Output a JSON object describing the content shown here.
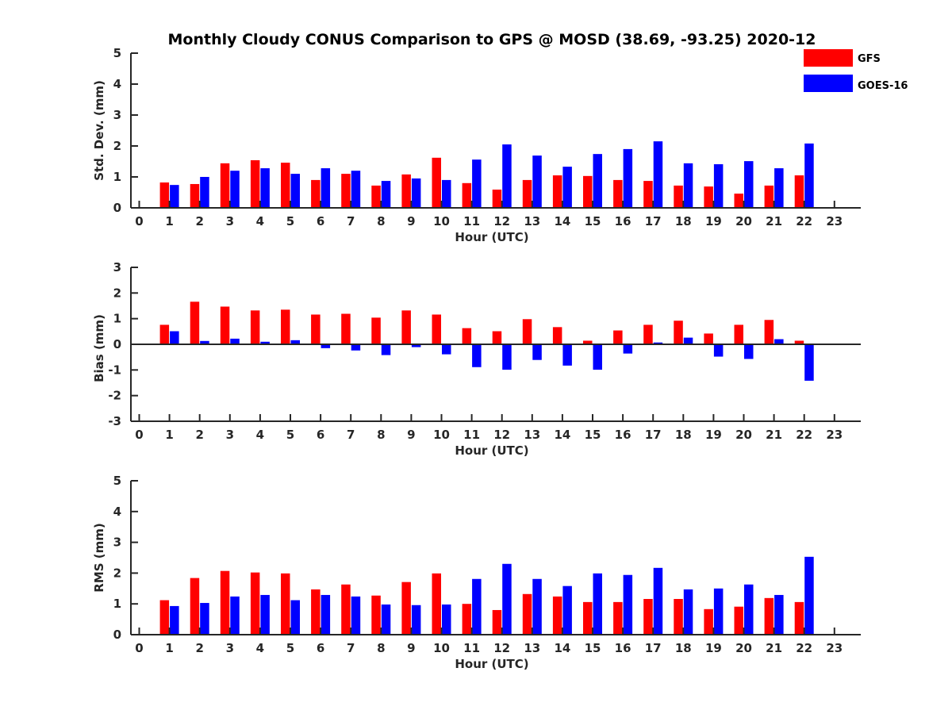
{
  "chart_data": [
    {
      "type": "bar",
      "title": "Monthly Cloudy CONUS Comparison to GPS @ MOSD (38.69, -93.25) 2020-12",
      "xlabel": "Hour (UTC)",
      "ylabel": "Std. Dev. (mm)",
      "ylim": [
        0,
        5
      ],
      "yticks": [
        "0",
        "1",
        "2",
        "3",
        "4",
        "5"
      ],
      "categories": [
        "0",
        "1",
        "2",
        "3",
        "4",
        "5",
        "6",
        "7",
        "8",
        "9",
        "10",
        "11",
        "12",
        "13",
        "14",
        "15",
        "16",
        "17",
        "18",
        "19",
        "20",
        "21",
        "22",
        "23"
      ],
      "series": [
        {
          "name": "GFS",
          "color": "#ff0000",
          "values": [
            null,
            0.82,
            0.77,
            1.44,
            1.54,
            1.46,
            0.9,
            1.1,
            0.72,
            1.08,
            1.62,
            0.8,
            0.59,
            0.9,
            1.05,
            1.03,
            0.9,
            0.87,
            0.72,
            0.69,
            0.46,
            0.72,
            1.05,
            null
          ]
        },
        {
          "name": "GOES-16",
          "color": "#0000ff",
          "values": [
            null,
            0.74,
            1.0,
            1.2,
            1.28,
            1.1,
            1.28,
            1.2,
            0.87,
            0.95,
            0.9,
            1.56,
            2.05,
            1.69,
            1.33,
            1.74,
            1.9,
            2.15,
            1.44,
            1.41,
            1.51,
            1.28,
            2.08,
            null
          ]
        }
      ],
      "legend": "top-right"
    },
    {
      "type": "bar",
      "title": "",
      "xlabel": "Hour (UTC)",
      "ylabel": "Bias (mm)",
      "ylim": [
        -3,
        3
      ],
      "yticks": [
        "-3",
        "-2",
        "-1",
        "0",
        "1",
        "2",
        "3"
      ],
      "categories": [
        "0",
        "1",
        "2",
        "3",
        "4",
        "5",
        "6",
        "7",
        "8",
        "9",
        "10",
        "11",
        "12",
        "13",
        "14",
        "15",
        "16",
        "17",
        "18",
        "19",
        "20",
        "21",
        "22",
        "23"
      ],
      "series": [
        {
          "name": "GFS",
          "color": "#ff0000",
          "values": [
            null,
            0.76,
            1.66,
            1.47,
            1.32,
            1.35,
            1.16,
            1.19,
            1.04,
            1.32,
            1.16,
            0.63,
            0.51,
            0.98,
            0.67,
            0.14,
            0.54,
            0.76,
            0.92,
            0.42,
            0.76,
            0.95,
            0.14,
            null
          ]
        },
        {
          "name": "GOES-16",
          "color": "#0000ff",
          "values": [
            null,
            0.51,
            0.13,
            0.22,
            0.1,
            0.16,
            -0.15,
            -0.24,
            -0.42,
            -0.11,
            -0.39,
            -0.89,
            -0.99,
            -0.61,
            -0.83,
            -0.99,
            -0.36,
            0.07,
            0.26,
            -0.48,
            -0.57,
            0.2,
            -1.42,
            null
          ]
        }
      ]
    },
    {
      "type": "bar",
      "title": "",
      "xlabel": "Hour (UTC)",
      "ylabel": "RMS (mm)",
      "ylim": [
        0,
        5
      ],
      "yticks": [
        "0",
        "1",
        "2",
        "3",
        "4",
        "5"
      ],
      "categories": [
        "0",
        "1",
        "2",
        "3",
        "4",
        "5",
        "6",
        "7",
        "8",
        "9",
        "10",
        "11",
        "12",
        "13",
        "14",
        "15",
        "16",
        "17",
        "18",
        "19",
        "20",
        "21",
        "22",
        "23"
      ],
      "series": [
        {
          "name": "GFS",
          "color": "#ff0000",
          "values": [
            null,
            1.12,
            1.84,
            2.07,
            2.02,
            1.99,
            1.47,
            1.63,
            1.27,
            1.71,
            1.99,
            1.0,
            0.8,
            1.32,
            1.24,
            1.06,
            1.06,
            1.16,
            1.16,
            0.83,
            0.91,
            1.19,
            1.06,
            null
          ]
        },
        {
          "name": "GOES-16",
          "color": "#0000ff",
          "values": [
            null,
            0.93,
            1.03,
            1.24,
            1.29,
            1.12,
            1.29,
            1.24,
            0.98,
            0.96,
            0.98,
            1.81,
            2.3,
            1.81,
            1.58,
            1.99,
            1.94,
            2.17,
            1.47,
            1.5,
            1.63,
            1.29,
            2.53,
            null
          ]
        }
      ]
    }
  ],
  "legend": {
    "items": [
      {
        "label": "GFS",
        "color": "#ff0000"
      },
      {
        "label": "GOES-16",
        "color": "#0000ff"
      }
    ]
  }
}
